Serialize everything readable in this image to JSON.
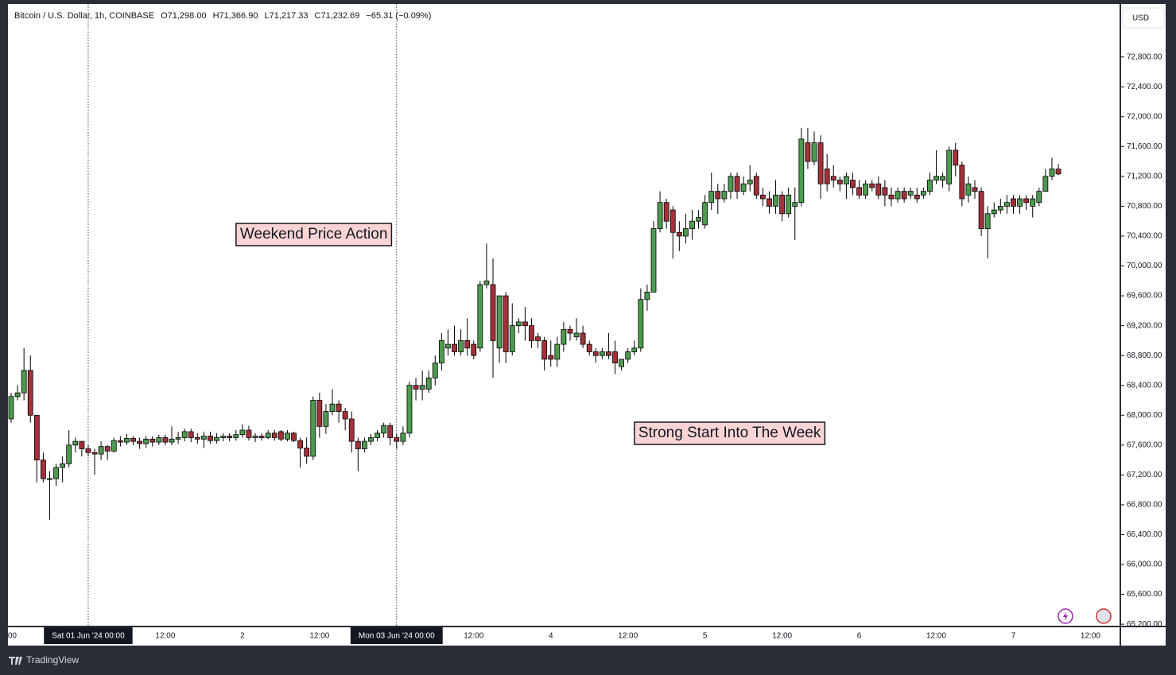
{
  "chart_data": {
    "type": "candlestick",
    "symbol": "Bitcoin / U.S. Dollar, 1h, COINBASE",
    "ohlc_legend": [
      "O71,298.00",
      "H71,366.90",
      "L71,217.33",
      "C71,232.69",
      "−65.31 (−0.09%)"
    ],
    "currency": "USD",
    "watermark": "TradingView",
    "annotations": [
      {
        "text": "Weekend Price Action",
        "x": 36
      },
      {
        "text": "Strong Start Into The Week",
        "x": 98
      }
    ],
    "up_color": "#4e9a50",
    "down_color": "#a3313a",
    "open": [
      67950,
      68250,
      68300,
      68600,
      68000,
      67400,
      67150,
      67150,
      67300,
      67350,
      67600,
      67650,
      67550,
      67500,
      67480,
      67580,
      67520,
      67660,
      67640,
      67690,
      67650,
      67620,
      67680,
      67640,
      67700,
      67640,
      67680,
      67700,
      67780,
      67700,
      67680,
      67720,
      67660,
      67700,
      67720,
      67700,
      67740,
      67800,
      67700,
      67720,
      67700,
      67760,
      67780,
      67680,
      67760,
      67660,
      67560,
      67450,
      68200,
      67850,
      68050,
      68150,
      68050,
      67950,
      67650,
      67550,
      67650,
      67700,
      67760,
      67860,
      67700,
      67650,
      67760,
      68400,
      68350,
      68350,
      68500,
      68700,
      68900,
      68950,
      68850,
      69000,
      68950,
      68900,
      69750,
      69750,
      68900,
      69600,
      68850,
      69200,
      69250,
      69200,
      69050,
      69000,
      68800,
      68750,
      68950,
      69150,
      69050,
      69100,
      68950,
      68850,
      68800,
      68850,
      68850,
      68650,
      68750,
      68850,
      68900,
      69550,
      69650,
      70500,
      70850,
      70750,
      70450,
      70400,
      70500,
      70600,
      70550,
      70850,
      71000,
      70900,
      71000,
      71200,
      71000,
      71100,
      71200,
      70950,
      70900,
      70800,
      70950,
      70700,
      70800,
      70850,
      71650,
      71400,
      71650,
      71300,
      71200,
      71150,
      71100,
      71150,
      71050,
      70950,
      71100,
      71100,
      71050,
      70950,
      70900,
      71000,
      70950,
      70950,
      70950,
      71000,
      71150,
      71150,
      71100,
      71550,
      71350,
      70950,
      71050,
      71000,
      70500,
      70700,
      70750,
      70800,
      70900,
      70800,
      70900,
      70800,
      70850,
      71000,
      71200,
      71298
    ],
    "high": [
      68300,
      68400,
      68900,
      68800,
      68000,
      67500,
      67250,
      67350,
      67450,
      67800,
      67700,
      67650,
      67600,
      67550,
      67650,
      67600,
      67700,
      67720,
      67750,
      67720,
      67700,
      67720,
      67720,
      67740,
      67740,
      67850,
      67780,
      67820,
      67820,
      67760,
      67780,
      67780,
      67760,
      67760,
      67760,
      67800,
      67880,
      67860,
      67760,
      67760,
      67800,
      67800,
      67800,
      67800,
      67780,
      67700,
      67700,
      68250,
      68300,
      68150,
      68350,
      68200,
      68100,
      68050,
      67700,
      67700,
      67750,
      67800,
      67900,
      67900,
      67750,
      67850,
      68450,
      68500,
      68600,
      68600,
      68800,
      69100,
      69150,
      69200,
      69150,
      69300,
      69000,
      69800,
      70300,
      70100,
      69600,
      69650,
      69500,
      69300,
      69450,
      69300,
      69100,
      69050,
      69000,
      69050,
      69250,
      69200,
      69300,
      69200,
      69000,
      68900,
      68900,
      69100,
      69000,
      68750,
      68900,
      69000,
      69700,
      69750,
      70600,
      71000,
      70900,
      70800,
      70600,
      70700,
      70750,
      70750,
      70950,
      71250,
      71100,
      71100,
      71250,
      71250,
      71200,
      71350,
      71250,
      71050,
      71000,
      71150,
      71000,
      71050,
      71050,
      71850,
      71850,
      71800,
      71750,
      71500,
      71350,
      71200,
      71250,
      71250,
      71150,
      71150,
      71150,
      71200,
      71150,
      71050,
      71050,
      71050,
      71050,
      71050,
      71050,
      71250,
      71550,
      71250,
      71600,
      71650,
      71400,
      71200,
      71150,
      71050,
      70800,
      70850,
      70900,
      70950,
      70950,
      70950,
      70950,
      70950,
      71050,
      71300,
      71450,
      71366.9
    ],
    "low": [
      67900,
      68200,
      68200,
      67900,
      67100,
      67100,
      66600,
      67050,
      67100,
      67300,
      67500,
      67450,
      67450,
      67200,
      67400,
      67400,
      67500,
      67580,
      67600,
      67600,
      67550,
      67560,
      67580,
      67600,
      67600,
      67600,
      67620,
      67650,
      67640,
      67620,
      67560,
      67620,
      67620,
      67650,
      67650,
      67660,
      67700,
      67660,
      67640,
      67660,
      67680,
      67660,
      67650,
      67650,
      67640,
      67300,
      67350,
      67400,
      67700,
      67750,
      68000,
      67900,
      67800,
      67500,
      67250,
      67500,
      67600,
      67650,
      67700,
      67600,
      67550,
      67600,
      67700,
      68200,
      68200,
      68300,
      68400,
      68600,
      68800,
      68800,
      68800,
      68800,
      68750,
      68850,
      69700,
      68500,
      68700,
      68700,
      68800,
      69100,
      69000,
      68900,
      68900,
      68600,
      68650,
      68650,
      68850,
      69000,
      69000,
      68900,
      68800,
      68700,
      68750,
      68750,
      68550,
      68600,
      68700,
      68800,
      68850,
      69400,
      69650,
      70450,
      70500,
      70100,
      70200,
      70300,
      70350,
      70500,
      70500,
      70750,
      70700,
      70850,
      70900,
      70900,
      70950,
      71000,
      70900,
      70800,
      70700,
      70700,
      70600,
      70650,
      70350,
      70800,
      71300,
      71350,
      70900,
      71000,
      71050,
      71000,
      70900,
      70950,
      70900,
      70900,
      71000,
      70900,
      70800,
      70800,
      70850,
      70850,
      70900,
      70850,
      70900,
      70950,
      71100,
      71050,
      71000,
      71200,
      70800,
      70850,
      70900,
      70400,
      70100,
      70650,
      70700,
      70700,
      70700,
      70700,
      70750,
      70650,
      70800,
      71000,
      71150,
      71217.33
    ],
    "close": [
      68250,
      68300,
      68600,
      68000,
      67400,
      67150,
      67150,
      67300,
      67350,
      67600,
      67650,
      67550,
      67500,
      67480,
      67580,
      67520,
      67660,
      67640,
      67690,
      67650,
      67620,
      67680,
      67640,
      67700,
      67640,
      67680,
      67700,
      67780,
      67700,
      67680,
      67720,
      67660,
      67700,
      67720,
      67700,
      67740,
      67800,
      67700,
      67720,
      67700,
      67760,
      67700,
      67680,
      67760,
      67660,
      67560,
      67450,
      68200,
      67850,
      68050,
      68150,
      68050,
      67950,
      67650,
      67550,
      67650,
      67700,
      67760,
      67860,
      67700,
      67650,
      67760,
      68400,
      68350,
      68400,
      68500,
      68700,
      69000,
      68950,
      68850,
      69000,
      68900,
      68800,
      69750,
      69800,
      69000,
      69600,
      68850,
      69200,
      69250,
      69200,
      69000,
      69000,
      68750,
      68750,
      68950,
      69150,
      69100,
      69100,
      68950,
      68850,
      68800,
      68850,
      68800,
      68700,
      68750,
      68850,
      68900,
      69550,
      69650,
      70500,
      70850,
      70600,
      70450,
      70400,
      70500,
      70600,
      70650,
      70850,
      71000,
      70900,
      71000,
      71200,
      71000,
      71100,
      71150,
      70950,
      70900,
      70800,
      70950,
      70700,
      70950,
      70850,
      71700,
      71400,
      71650,
      71100,
      71100,
      71150,
      71100,
      71200,
      71050,
      70950,
      71100,
      71050,
      70950,
      70950,
      70900,
      71000,
      70900,
      71000,
      70900,
      71000,
      71150,
      71200,
      71200,
      71550,
      71350,
      70900,
      71100,
      71000,
      70500,
      70700,
      70750,
      70800,
      70850,
      70800,
      70900,
      70850,
      70900,
      71000,
      71200,
      71300,
      71232.69
    ],
    "ylim": [
      65180,
      73510
    ],
    "yticks": [
      {
        "value": 65200,
        "label": "65,200.00"
      },
      {
        "value": 65600,
        "label": "65,600.00"
      },
      {
        "value": 66000,
        "label": "66,000.00"
      },
      {
        "value": 66400,
        "label": "66,400.00"
      },
      {
        "value": 66800,
        "label": "66,800.00"
      },
      {
        "value": 67200,
        "label": "67,200.00"
      },
      {
        "value": 67600,
        "label": "67,600.00"
      },
      {
        "value": 68000,
        "label": "68,000.00"
      },
      {
        "value": 68400,
        "label": "68,400.00"
      },
      {
        "value": 68800,
        "label": "68,800.00"
      },
      {
        "value": 69200,
        "label": "69,200.00"
      },
      {
        "value": 69600,
        "label": "69,600.00"
      },
      {
        "value": 70000,
        "label": "70,000.00"
      },
      {
        "value": 70400,
        "label": "70,400.00"
      },
      {
        "value": 70800,
        "label": "70,800.00"
      },
      {
        "value": 71200,
        "label": "71,200.00"
      },
      {
        "value": 71600,
        "label": "71,600.00"
      },
      {
        "value": 72000,
        "label": "72,000.00"
      },
      {
        "value": 72400,
        "label": "72,400.00"
      },
      {
        "value": 72800,
        "label": "72,800.00"
      }
    ],
    "xticks": [
      {
        "value": 0,
        "label": ":00"
      },
      {
        "value": 12,
        "label": "Sat 01 Jun '24   00:00"
      },
      {
        "value": 24,
        "label": "12:00"
      },
      {
        "value": 36,
        "label": "2"
      },
      {
        "value": 48,
        "label": "12:00"
      },
      {
        "value": 60,
        "label": "Mon 03 Jun '24   00:00"
      },
      {
        "value": 72,
        "label": "12:00"
      },
      {
        "value": 84,
        "label": "4"
      },
      {
        "value": 96,
        "label": "12:00"
      },
      {
        "value": 108,
        "label": "5"
      },
      {
        "value": 120,
        "label": "12:00"
      },
      {
        "value": 132,
        "label": "6"
      },
      {
        "value": 144,
        "label": "12:00"
      },
      {
        "value": 156,
        "label": "7"
      },
      {
        "value": 168,
        "label": "12:00"
      }
    ],
    "marked_xticks": [
      1,
      5
    ]
  }
}
